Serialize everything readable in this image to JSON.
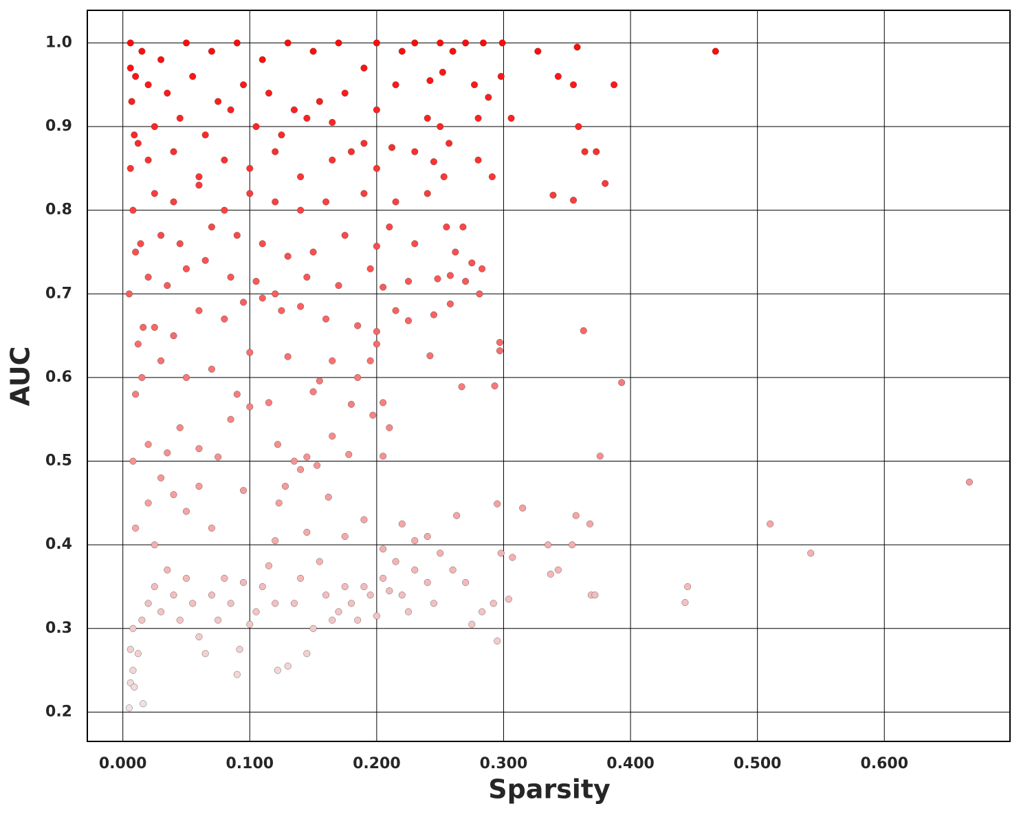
{
  "chart_data": {
    "type": "scatter",
    "x_label": "Sparsity",
    "y_label": "AUC",
    "x": [
      0.467,
      0.667,
      0.51,
      0.542,
      0.445,
      0.443,
      0.393,
      0.376,
      0.363,
      0.387,
      0.358,
      0.327,
      0.359,
      0.364,
      0.373,
      0.38,
      0.339,
      0.355,
      0.343,
      0.355,
      0.306,
      0.298,
      0.299,
      0.284,
      0.288,
      0.291,
      0.28,
      0.28,
      0.277,
      0.293,
      0.297,
      0.297,
      0.295,
      0.315,
      0.357,
      0.368,
      0.335,
      0.354,
      0.343,
      0.337,
      0.369,
      0.372,
      0.298,
      0.307,
      0.304,
      0.292,
      0.295,
      0.275,
      0.283,
      0.281,
      0.283,
      0.268,
      0.27,
      0.275,
      0.258,
      0.258,
      0.262,
      0.267,
      0.263,
      0.255,
      0.242,
      0.245,
      0.005,
      0.016,
      0.006,
      0.008,
      0.009,
      0.006,
      0.012,
      0.008,
      0.015,
      0.02,
      0.025,
      0.03,
      0.035,
      0.04,
      0.045,
      0.05,
      0.055,
      0.06,
      0.065,
      0.07,
      0.075,
      0.08,
      0.085,
      0.09,
      0.092,
      0.095,
      0.1,
      0.105,
      0.11,
      0.115,
      0.12,
      0.122,
      0.13,
      0.135,
      0.14,
      0.145,
      0.15,
      0.155,
      0.16,
      0.165,
      0.17,
      0.175,
      0.18,
      0.185,
      0.19,
      0.195,
      0.2,
      0.205,
      0.21,
      0.215,
      0.22,
      0.225,
      0.23,
      0.24,
      0.245,
      0.25,
      0.26,
      0.27,
      0.025,
      0.05,
      0.07,
      0.01,
      0.02,
      0.03,
      0.04,
      0.06,
      0.095,
      0.123,
      0.128,
      0.162,
      0.14,
      0.153,
      0.19,
      0.205,
      0.23,
      0.24,
      0.22,
      0.175,
      0.12,
      0.145,
      0.008,
      0.02,
      0.035,
      0.045,
      0.06,
      0.075,
      0.085,
      0.1,
      0.115,
      0.122,
      0.135,
      0.145,
      0.165,
      0.178,
      0.197,
      0.205,
      0.21,
      0.205,
      0.18,
      0.15,
      0.01,
      0.015,
      0.03,
      0.05,
      0.07,
      0.09,
      0.1,
      0.13,
      0.155,
      0.165,
      0.185,
      0.2,
      0.195,
      0.012,
      0.025,
      0.04,
      0.06,
      0.08,
      0.095,
      0.11,
      0.125,
      0.14,
      0.16,
      0.185,
      0.2,
      0.215,
      0.225,
      0.005,
      0.02,
      0.035,
      0.05,
      0.065,
      0.085,
      0.105,
      0.12,
      0.145,
      0.17,
      0.195,
      0.205,
      0.225,
      0.248,
      0.01,
      0.03,
      0.045,
      0.07,
      0.09,
      0.11,
      0.13,
      0.15,
      0.175,
      0.2,
      0.21,
      0.23,
      0.008,
      0.025,
      0.04,
      0.06,
      0.08,
      0.1,
      0.12,
      0.14,
      0.16,
      0.19,
      0.215,
      0.24,
      0.253,
      0.006,
      0.02,
      0.04,
      0.06,
      0.08,
      0.1,
      0.12,
      0.14,
      0.165,
      0.18,
      0.2,
      0.23,
      0.245,
      0.257,
      0.009,
      0.025,
      0.045,
      0.065,
      0.085,
      0.105,
      0.125,
      0.145,
      0.165,
      0.19,
      0.212,
      0.24,
      0.25,
      0.007,
      0.02,
      0.035,
      0.055,
      0.075,
      0.095,
      0.115,
      0.135,
      0.155,
      0.175,
      0.2,
      0.215,
      0.242,
      0.252,
      0.006,
      0.015,
      0.03,
      0.05,
      0.07,
      0.09,
      0.11,
      0.13,
      0.15,
      0.17,
      0.19,
      0.2,
      0.22,
      0.23,
      0.25,
      0.26,
      0.27,
      0.006,
      0.01,
      0.012,
      0.014,
      0.016
    ],
    "y": [
      0.99,
      0.475,
      0.425,
      0.39,
      0.35,
      0.331,
      0.594,
      0.506,
      0.656,
      0.95,
      0.995,
      0.99,
      0.9,
      0.87,
      0.87,
      0.832,
      0.818,
      0.812,
      0.96,
      0.95,
      0.91,
      0.96,
      1,
      1,
      0.935,
      0.84,
      0.86,
      0.91,
      0.95,
      0.59,
      0.642,
      0.632,
      0.449,
      0.444,
      0.435,
      0.425,
      0.4,
      0.4,
      0.37,
      0.365,
      0.34,
      0.34,
      0.39,
      0.385,
      0.335,
      0.33,
      0.285,
      0.305,
      0.32,
      0.7,
      0.73,
      0.78,
      0.715,
      0.737,
      0.722,
      0.688,
      0.75,
      0.589,
      0.435,
      0.78,
      0.626,
      0.675,
      0.205,
      0.21,
      0.235,
      0.25,
      0.23,
      0.275,
      0.27,
      0.3,
      0.31,
      0.33,
      0.35,
      0.32,
      0.37,
      0.34,
      0.31,
      0.36,
      0.33,
      0.29,
      0.27,
      0.34,
      0.31,
      0.36,
      0.33,
      0.245,
      0.275,
      0.355,
      0.305,
      0.32,
      0.35,
      0.375,
      0.33,
      0.25,
      0.255,
      0.33,
      0.36,
      0.27,
      0.3,
      0.38,
      0.34,
      0.31,
      0.32,
      0.35,
      0.33,
      0.31,
      0.35,
      0.34,
      0.315,
      0.36,
      0.345,
      0.38,
      0.34,
      0.32,
      0.37,
      0.355,
      0.33,
      0.39,
      0.37,
      0.355,
      0.4,
      0.44,
      0.42,
      0.42,
      0.45,
      0.48,
      0.46,
      0.47,
      0.465,
      0.45,
      0.47,
      0.457,
      0.49,
      0.495,
      0.43,
      0.395,
      0.405,
      0.41,
      0.425,
      0.41,
      0.405,
      0.415,
      0.5,
      0.52,
      0.51,
      0.54,
      0.515,
      0.505,
      0.55,
      0.565,
      0.57,
      0.52,
      0.5,
      0.505,
      0.53,
      0.508,
      0.555,
      0.506,
      0.54,
      0.57,
      0.568,
      0.583,
      0.58,
      0.6,
      0.62,
      0.6,
      0.61,
      0.58,
      0.63,
      0.625,
      0.596,
      0.62,
      0.6,
      0.655,
      0.62,
      0.64,
      0.66,
      0.65,
      0.68,
      0.67,
      0.69,
      0.695,
      0.68,
      0.685,
      0.67,
      0.662,
      0.64,
      0.68,
      0.668,
      0.7,
      0.72,
      0.71,
      0.73,
      0.74,
      0.72,
      0.715,
      0.7,
      0.72,
      0.71,
      0.73,
      0.708,
      0.715,
      0.718,
      0.75,
      0.77,
      0.76,
      0.78,
      0.77,
      0.76,
      0.745,
      0.75,
      0.77,
      0.757,
      0.78,
      0.76,
      0.8,
      0.82,
      0.81,
      0.83,
      0.8,
      0.82,
      0.81,
      0.8,
      0.81,
      0.82,
      0.81,
      0.82,
      0.84,
      0.85,
      0.86,
      0.87,
      0.84,
      0.86,
      0.85,
      0.87,
      0.84,
      0.86,
      0.87,
      0.85,
      0.87,
      0.858,
      0.88,
      0.89,
      0.9,
      0.91,
      0.89,
      0.92,
      0.9,
      0.89,
      0.91,
      0.905,
      0.88,
      0.875,
      0.91,
      0.9,
      0.93,
      0.95,
      0.94,
      0.96,
      0.93,
      0.95,
      0.94,
      0.92,
      0.93,
      0.94,
      0.92,
      0.95,
      0.955,
      0.965,
      0.97,
      0.99,
      0.98,
      1,
      0.99,
      1,
      0.98,
      1,
      0.99,
      1,
      0.97,
      1,
      0.99,
      1,
      1,
      0.99,
      1,
      1,
      0.96,
      0.88,
      0.76,
      0.66
    ],
    "colormap": {
      "low": "#f2e2e2",
      "high": "#ff0a0a"
    },
    "xlim": [
      -0.028,
      0.699
    ],
    "ylim": [
      0.165,
      1.039
    ],
    "xticks": [
      {
        "value": 0,
        "label": "0.000"
      },
      {
        "value": 0.1,
        "label": "0.100"
      },
      {
        "value": 0.2,
        "label": "0.200"
      },
      {
        "value": 0.3,
        "label": "0.300"
      },
      {
        "value": 0.4,
        "label": "0.400"
      },
      {
        "value": 0.5,
        "label": "0.500"
      },
      {
        "value": 0.6,
        "label": "0.600"
      }
    ],
    "yticks": [
      0.2,
      0.3,
      0.4,
      0.5,
      0.6,
      0.7,
      0.8,
      0.9,
      {
        "value": 1,
        "label": "1.0"
      }
    ],
    "grid": true
  }
}
